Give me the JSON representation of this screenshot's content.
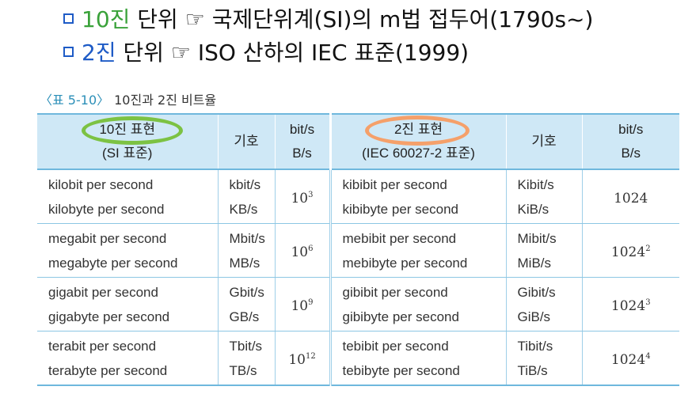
{
  "bullets": {
    "line1": {
      "prefix": "10진",
      "rest": " 단위 ☞ 국제단위계(SI)의 m법 접두어(1790s~)"
    },
    "line2": {
      "prefix": "2진",
      "rest": " 단위 ☞ ISO 산하의 IEC 표준(1999)"
    }
  },
  "caption": {
    "tag": "〈표 5-10〉",
    "title": "10진과 2진 비트율"
  },
  "table": {
    "headers": {
      "decimal_line1": "10진 표현",
      "decimal_line2": "(SI 표준)",
      "symbol1": "기호",
      "rate1_line1": "bit/s",
      "rate1_line2": "B/s",
      "binary_line1": "2진 표현",
      "binary_line2": "(IEC 60027-2 표준)",
      "symbol2": "기호",
      "rate2_line1": "bit/s",
      "rate2_line2": "B/s"
    },
    "rows": [
      {
        "dec_bit": "kilobit per second",
        "dec_byte": "kilobyte per second",
        "dec_sym_bit": "kbit/s",
        "dec_sym_byte": "KB/s",
        "dec_base": "10",
        "dec_exp": "3",
        "bin_bit": "kibibit per second",
        "bin_byte": "kibibyte per second",
        "bin_sym_bit": "Kibit/s",
        "bin_sym_byte": "KiB/s",
        "bin_base": "1024",
        "bin_exp": ""
      },
      {
        "dec_bit": "megabit per second",
        "dec_byte": "megabyte per second",
        "dec_sym_bit": "Mbit/s",
        "dec_sym_byte": "MB/s",
        "dec_base": "10",
        "dec_exp": "6",
        "bin_bit": "mebibit per second",
        "bin_byte": "mebibyte per second",
        "bin_sym_bit": "Mibit/s",
        "bin_sym_byte": "MiB/s",
        "bin_base": "1024",
        "bin_exp": "2"
      },
      {
        "dec_bit": "gigabit per second",
        "dec_byte": "gigabyte per second",
        "dec_sym_bit": "Gbit/s",
        "dec_sym_byte": "GB/s",
        "dec_base": "10",
        "dec_exp": "9",
        "bin_bit": "gibibit per second",
        "bin_byte": "gibibyte per second",
        "bin_sym_bit": "Gibit/s",
        "bin_sym_byte": "GiB/s",
        "bin_base": "1024",
        "bin_exp": "3"
      },
      {
        "dec_bit": "terabit per second",
        "dec_byte": "terabyte per second",
        "dec_sym_bit": "Tbit/s",
        "dec_sym_byte": "TB/s",
        "dec_base": "10",
        "dec_exp": "12",
        "bin_bit": "tebibit per second",
        "bin_byte": "tebibyte per second",
        "bin_sym_bit": "Tibit/s",
        "bin_sym_byte": "TiB/s",
        "bin_base": "1024",
        "bin_exp": "4"
      }
    ]
  },
  "colors": {
    "bullet_box": "#1e5bc6",
    "highlight_decimal": "#3aa23a",
    "highlight_binary": "#1e5bc6",
    "header_bg": "#cfe8f6",
    "table_rule": "#6fb8dd",
    "oval_decimal": "#7cc243",
    "oval_binary": "#f5a06a"
  }
}
